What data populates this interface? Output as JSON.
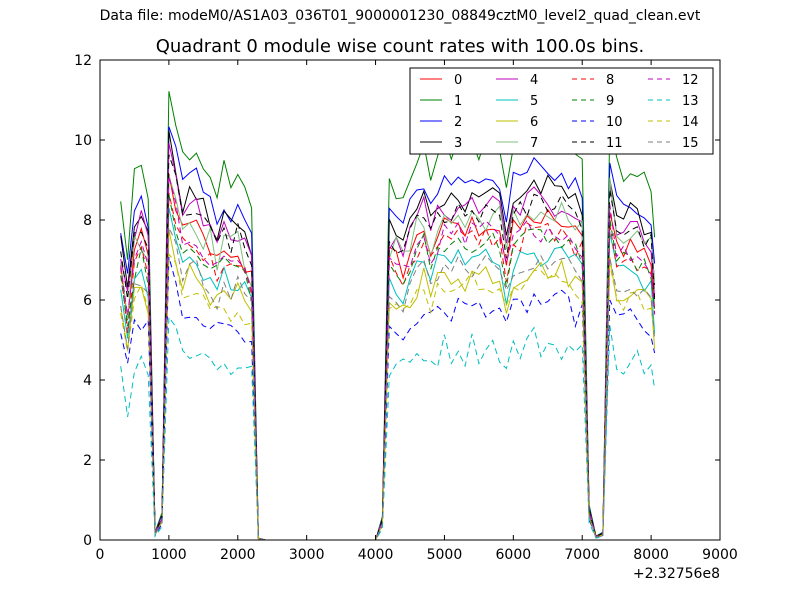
{
  "figure": {
    "suptitle": "Data file: modeM0/AS1A03_036T01_9000001230_08849cztM0_level2_quad_clean.evt",
    "title": "Quadrant 0 module wise count rates with 100.0s bins."
  },
  "chart_data": {
    "type": "line",
    "title": "Quadrant 0 module wise count rates with 100.0s bins.",
    "xlabel": "",
    "ylabel": "",
    "xlim": [
      0,
      9000
    ],
    "ylim": [
      0,
      12
    ],
    "x_offset_label": "+2.32756e8",
    "x_ticks": [
      0,
      1000,
      2000,
      3000,
      4000,
      5000,
      6000,
      7000,
      8000,
      9000
    ],
    "y_ticks": [
      0,
      2,
      4,
      6,
      8,
      10,
      12
    ],
    "grid": false,
    "legend_position": "top-right",
    "legend_columns": 4,
    "x": [
      300,
      400,
      500,
      600,
      700,
      800,
      900,
      1000,
      1100,
      1200,
      1300,
      1400,
      1500,
      1600,
      1700,
      1800,
      1900,
      2000,
      2100,
      2200,
      2300,
      2400,
      2500,
      2600,
      2700,
      2800,
      2900,
      3000,
      3100,
      3200,
      3300,
      3400,
      3500,
      3600,
      3700,
      3800,
      3900,
      4000,
      4100,
      4200,
      4300,
      4400,
      4500,
      4600,
      4700,
      4800,
      4900,
      5000,
      5100,
      5200,
      5300,
      5400,
      5500,
      5600,
      5700,
      5800,
      5900,
      6000,
      6100,
      6200,
      6300,
      6400,
      6500,
      6600,
      6700,
      6800,
      6900,
      7000,
      7100,
      7200,
      7300,
      7400,
      7500,
      7600,
      7700,
      7800,
      7900,
      8000,
      8050
    ],
    "series": [
      {
        "name": "0",
        "color": "#ff0000",
        "dash": "solid",
        "scale": 0.78,
        "noise": 0.3
      },
      {
        "name": "1",
        "color": "#008000",
        "dash": "solid",
        "scale": 0.98,
        "noise": 0.3
      },
      {
        "name": "2",
        "color": "#0000ff",
        "dash": "solid",
        "scale": 0.9,
        "noise": 0.3
      },
      {
        "name": "3",
        "color": "#000000",
        "dash": "solid",
        "scale": 0.86,
        "noise": 0.3
      },
      {
        "name": "4",
        "color": "#bf00bf",
        "dash": "solid",
        "scale": 0.83,
        "noise": 0.3
      },
      {
        "name": "5",
        "color": "#00bfbf",
        "dash": "solid",
        "scale": 0.7,
        "noise": 0.3
      },
      {
        "name": "6",
        "color": "#bfbf00",
        "dash": "solid",
        "scale": 0.66,
        "noise": 0.3
      },
      {
        "name": "7",
        "color": "#7fbf7f",
        "dash": "solid",
        "scale": 0.8,
        "noise": 0.45
      },
      {
        "name": "8",
        "color": "#ff0000",
        "dash": "dashed",
        "scale": 0.75,
        "noise": 0.3
      },
      {
        "name": "9",
        "color": "#008000",
        "dash": "dashed",
        "scale": 0.74,
        "noise": 0.3
      },
      {
        "name": "10",
        "color": "#0000ff",
        "dash": "dashed",
        "scale": 0.58,
        "noise": 0.35
      },
      {
        "name": "11",
        "color": "#000000",
        "dash": "dashed",
        "scale": 0.82,
        "noise": 0.3
      },
      {
        "name": "12",
        "color": "#bf00bf",
        "dash": "dashed",
        "scale": 0.76,
        "noise": 0.3
      },
      {
        "name": "13",
        "color": "#00bfbf",
        "dash": "dashed",
        "scale": 0.48,
        "noise": 0.4
      },
      {
        "name": "14",
        "color": "#bfbf00",
        "dash": "dashed",
        "scale": 0.64,
        "noise": 0.3
      },
      {
        "name": "15",
        "color": "#7f7f7f",
        "dash": "dashed",
        "scale": 0.68,
        "noise": 0.3
      }
    ],
    "base_profile": [
      8.7,
      7.2,
      9.2,
      9.6,
      9.0,
      0.2,
      0.7,
      11.6,
      10.8,
      9.8,
      10.0,
      10.0,
      9.6,
      9.3,
      8.9,
      9.5,
      9.0,
      9.3,
      8.8,
      8.4,
      0.05,
      0,
      0,
      0,
      0,
      0,
      0,
      0,
      0,
      0,
      0,
      0,
      0,
      0,
      0,
      0,
      0,
      0,
      0.6,
      9.1,
      9.0,
      8.7,
      9.2,
      9.6,
      10.0,
      9.3,
      9.8,
      10.0,
      9.9,
      10.2,
      9.8,
      10.1,
      10.0,
      10.2,
      10.1,
      10.0,
      8.8,
      9.9,
      10.0,
      10.2,
      10.4,
      10.2,
      10.3,
      10.0,
      10.2,
      10.0,
      9.8,
      9.6,
      0.9,
      0.1,
      0.2,
      10.8,
      9.5,
      9.4,
      9.5,
      9.3,
      9.2,
      9.0,
      7.5
    ]
  }
}
